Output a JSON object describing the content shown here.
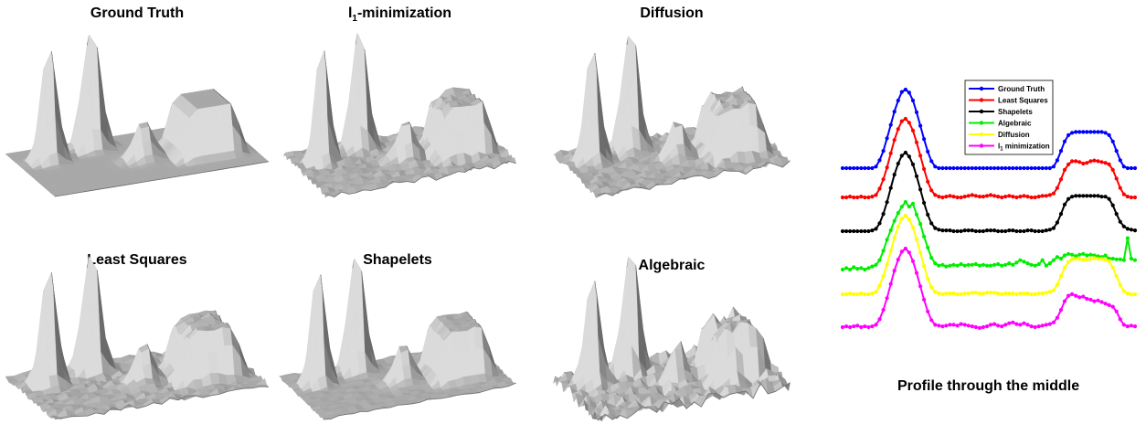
{
  "panels": [
    {
      "id": "ground-truth",
      "title": "Ground Truth",
      "sub": "",
      "rest": ""
    },
    {
      "id": "l1",
      "title": "l",
      "sub": "1",
      "rest": "-minimization"
    },
    {
      "id": "diffusion",
      "title": "Diffusion",
      "sub": "",
      "rest": ""
    },
    {
      "id": "least-squares",
      "title": "Least Squares",
      "sub": "",
      "rest": ""
    },
    {
      "id": "shapelets",
      "title": "Shapelets",
      "sub": "",
      "rest": ""
    },
    {
      "id": "algebraic",
      "title": "Algebraic",
      "sub": "",
      "rest": ""
    }
  ],
  "colors": {
    "surface_fill": "#a9a9a9",
    "surface_light": "#c9c9c9",
    "surface_dark": "#8c8c8c",
    "surface_edge": "#6e6e6e"
  },
  "chart_data": {
    "type": "line",
    "title": "",
    "caption": "Profile through the middle",
    "xlabel": "",
    "ylabel": "",
    "grid": false,
    "legend_position": "top-center",
    "x": [
      0,
      1,
      2,
      3,
      4,
      5,
      6,
      7,
      8,
      9,
      10,
      11,
      12,
      13,
      14,
      15,
      16,
      17,
      18,
      19,
      20,
      21,
      22,
      23,
      24,
      25,
      26,
      27,
      28,
      29,
      30,
      31,
      32,
      33,
      34,
      35,
      36,
      37,
      38,
      39,
      40,
      41,
      42,
      43,
      44,
      45,
      46,
      47,
      48,
      49,
      50,
      51,
      52,
      53,
      54,
      55,
      56,
      57,
      58,
      59,
      60,
      61,
      62,
      63,
      64,
      65,
      66,
      67,
      68,
      69,
      70,
      71,
      72,
      73,
      74,
      75,
      76,
      77,
      78,
      79
    ],
    "series": [
      {
        "name": "Ground Truth",
        "color": "#0000ff",
        "legend_sub": "",
        "legend_rest": "",
        "values": [
          0,
          0,
          0,
          0,
          0,
          0,
          0,
          0,
          0,
          0.02,
          0.1,
          0.22,
          0.38,
          0.55,
          0.72,
          0.86,
          0.97,
          1.0,
          0.96,
          0.86,
          0.71,
          0.54,
          0.37,
          0.21,
          0.09,
          0.02,
          0,
          0,
          0,
          0,
          0,
          0,
          0,
          0,
          0,
          0,
          0,
          0,
          0,
          0,
          0,
          0,
          0,
          0,
          0,
          0,
          0,
          0,
          0,
          0,
          0,
          0,
          0,
          0,
          0,
          0,
          0,
          0.02,
          0.1,
          0.22,
          0.34,
          0.42,
          0.45,
          0.46,
          0.46,
          0.46,
          0.46,
          0.46,
          0.46,
          0.46,
          0.46,
          0.45,
          0.42,
          0.34,
          0.22,
          0.1,
          0.02,
          0,
          0,
          0
        ]
      },
      {
        "name": "Least Squares",
        "color": "#ff0000",
        "legend_sub": "",
        "legend_rest": "",
        "values": [
          0,
          0,
          0.01,
          0,
          0,
          0.01,
          0,
          0,
          0.01,
          0.03,
          0.11,
          0.23,
          0.38,
          0.56,
          0.73,
          0.87,
          0.97,
          1.0,
          0.95,
          0.85,
          0.7,
          0.53,
          0.36,
          0.2,
          0.09,
          0.03,
          0.01,
          0,
          0.01,
          0.02,
          0.01,
          0,
          0,
          0.01,
          0.02,
          0.03,
          0.02,
          0.01,
          0.01,
          0.02,
          0.03,
          0.02,
          0.01,
          0,
          0.01,
          0.02,
          0.01,
          0,
          0.01,
          0.02,
          0.01,
          0,
          0,
          0.01,
          0.02,
          0.02,
          0.03,
          0.05,
          0.12,
          0.23,
          0.35,
          0.42,
          0.46,
          0.46,
          0.45,
          0.43,
          0.44,
          0.46,
          0.47,
          0.46,
          0.45,
          0.44,
          0.42,
          0.35,
          0.24,
          0.12,
          0.04,
          0.01,
          0,
          0
        ]
      },
      {
        "name": "Shapelets",
        "color": "#000000",
        "legend_sub": "",
        "legend_rest": "",
        "values": [
          0,
          0,
          0,
          0,
          0,
          0,
          0,
          0,
          0.01,
          0.03,
          0.1,
          0.22,
          0.37,
          0.55,
          0.72,
          0.86,
          0.96,
          1.0,
          0.95,
          0.85,
          0.7,
          0.53,
          0.36,
          0.21,
          0.1,
          0.04,
          0.02,
          0.01,
          0.01,
          0.01,
          0,
          0,
          0,
          0.01,
          0.01,
          0.01,
          0,
          0,
          0,
          0.01,
          0.01,
          0.01,
          0,
          0,
          0,
          0.01,
          0.01,
          0,
          0,
          0,
          0.01,
          0.01,
          0,
          0,
          0,
          0.01,
          0.02,
          0.04,
          0.11,
          0.22,
          0.34,
          0.41,
          0.44,
          0.45,
          0.45,
          0.45,
          0.45,
          0.45,
          0.45,
          0.45,
          0.44,
          0.44,
          0.41,
          0.33,
          0.22,
          0.12,
          0.06,
          0.03,
          0.02,
          0.01
        ]
      },
      {
        "name": "Algebraic",
        "color": "#00ee00",
        "legend_sub": "",
        "legend_rest": "",
        "values": [
          0,
          0.02,
          0,
          0.03,
          0.01,
          0.02,
          0,
          0.02,
          0.04,
          0.06,
          0.12,
          0.24,
          0.38,
          0.5,
          0.62,
          0.72,
          0.8,
          0.86,
          0.8,
          0.84,
          0.7,
          0.58,
          0.42,
          0.28,
          0.15,
          0.08,
          0.05,
          0.06,
          0.04,
          0.05,
          0.06,
          0.05,
          0.07,
          0.05,
          0.06,
          0.06,
          0.07,
          0.05,
          0.06,
          0.05,
          0.05,
          0.06,
          0.07,
          0.05,
          0.06,
          0.08,
          0.06,
          0.09,
          0.12,
          0.1,
          0.08,
          0.06,
          0.05,
          0.07,
          0.12,
          0.05,
          0.08,
          0.12,
          0.16,
          0.14,
          0.18,
          0.2,
          0.19,
          0.17,
          0.19,
          0.2,
          0.18,
          0.19,
          0.18,
          0.17,
          0.16,
          0.18,
          0.14,
          0.14,
          0.13,
          0.13,
          0.12,
          0.4,
          0.14,
          0.12
        ]
      },
      {
        "name": "Diffusion",
        "color": "#ffff00",
        "legend_sub": "",
        "legend_rest": "",
        "values": [
          0,
          0,
          0.01,
          0,
          0,
          0.01,
          0,
          0,
          0.01,
          0.03,
          0.11,
          0.23,
          0.38,
          0.55,
          0.72,
          0.86,
          0.96,
          1.0,
          0.95,
          0.85,
          0.7,
          0.53,
          0.36,
          0.2,
          0.09,
          0.03,
          0.01,
          0,
          0.01,
          0.01,
          0.01,
          0,
          0,
          0.01,
          0.01,
          0.02,
          0.02,
          0.01,
          0.01,
          0.02,
          0.02,
          0.02,
          0.01,
          0,
          0.01,
          0.01,
          0.01,
          0,
          0.01,
          0.01,
          0.01,
          0,
          0,
          0.01,
          0.01,
          0.02,
          0.03,
          0.05,
          0.12,
          0.23,
          0.34,
          0.41,
          0.45,
          0.45,
          0.45,
          0.44,
          0.44,
          0.45,
          0.46,
          0.45,
          0.45,
          0.44,
          0.42,
          0.34,
          0.23,
          0.12,
          0.04,
          0.01,
          0,
          0
        ]
      },
      {
        "name": "l1 minimization",
        "color": "#ff00ff",
        "legend_sub": "1",
        "legend_rest": " minimization",
        "values": [
          0,
          0.01,
          0,
          0.01,
          0.02,
          0,
          0.01,
          0,
          0.01,
          0.03,
          0.1,
          0.22,
          0.37,
          0.55,
          0.72,
          0.86,
          0.96,
          1.0,
          0.95,
          0.84,
          0.69,
          0.52,
          0.35,
          0.2,
          0.09,
          0.03,
          0.02,
          0.01,
          0.02,
          0.03,
          0.03,
          0.02,
          0.04,
          0.03,
          0.02,
          0.01,
          0.0,
          -0.01,
          0.0,
          0.01,
          0.03,
          0.04,
          0.02,
          0.01,
          0.03,
          0.05,
          0.06,
          0.04,
          0.03,
          0.05,
          0.03,
          0.01,
          0.0,
          0.01,
          0.02,
          0.03,
          0.04,
          0.06,
          0.12,
          0.22,
          0.33,
          0.4,
          0.42,
          0.4,
          0.38,
          0.39,
          0.36,
          0.35,
          0.33,
          0.34,
          0.32,
          0.3,
          0.28,
          0.26,
          0.2,
          0.1,
          0.03,
          0.01,
          0.02,
          0.01
        ]
      }
    ]
  }
}
